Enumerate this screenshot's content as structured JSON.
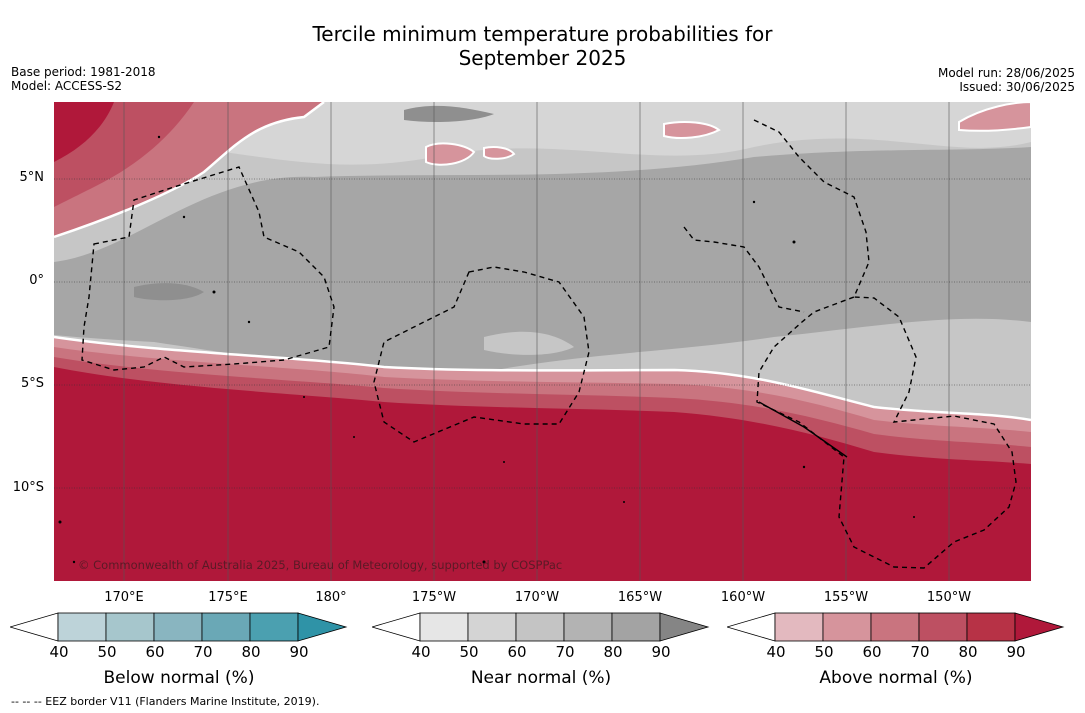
{
  "title_line1": "Tercile minimum temperature probabilities for",
  "title_line2": "September 2025",
  "meta": {
    "base_period": "Base period: 1981-2018",
    "model": "Model: ACCESS-S2",
    "model_run": "Model run: 28/06/2025",
    "issued": "Issued: 30/06/2025"
  },
  "map": {
    "lat_labels": [
      "5°N",
      "0°",
      "5°S",
      "10°S"
    ],
    "lon_labels": [
      "170°E",
      "175°E",
      "180°",
      "175°W",
      "170°W",
      "165°W",
      "160°W",
      "155°W",
      "150°W"
    ],
    "copyright": "© Commonwealth of Australia 2025, Bureau of Meteorology, supported by COSPPac",
    "colors": {
      "above_dark": "#b21e3a",
      "near_mid": "#a6a6a6",
      "near_light": "#c6c6c6"
    }
  },
  "colorbars": [
    {
      "title": "Below normal (%)",
      "ticks": [
        "40",
        "50",
        "60",
        "70",
        "80",
        "90"
      ],
      "colors": [
        "#ffffff",
        "#bdd3d9",
        "#a6c6cc",
        "#89b5c0",
        "#6aa8b6",
        "#4ba0b0",
        "#2f93a7"
      ]
    },
    {
      "title": "Near normal (%)",
      "ticks": [
        "40",
        "50",
        "60",
        "70",
        "80",
        "90"
      ],
      "colors": [
        "#ffffff",
        "#e6e6e6",
        "#d4d4d4",
        "#c4c4c4",
        "#b3b3b3",
        "#a3a3a3",
        "#858585"
      ]
    },
    {
      "title": "Above normal (%)",
      "ticks": [
        "40",
        "50",
        "60",
        "70",
        "80",
        "90"
      ],
      "colors": [
        "#ffffff",
        "#e3b9bf",
        "#d6949c",
        "#c9747f",
        "#bd5062",
        "#b73246",
        "#b0183a"
      ]
    }
  ],
  "footnote": "--  --  -- EEZ border V11 (Flanders Marine Institute, 2019)."
}
